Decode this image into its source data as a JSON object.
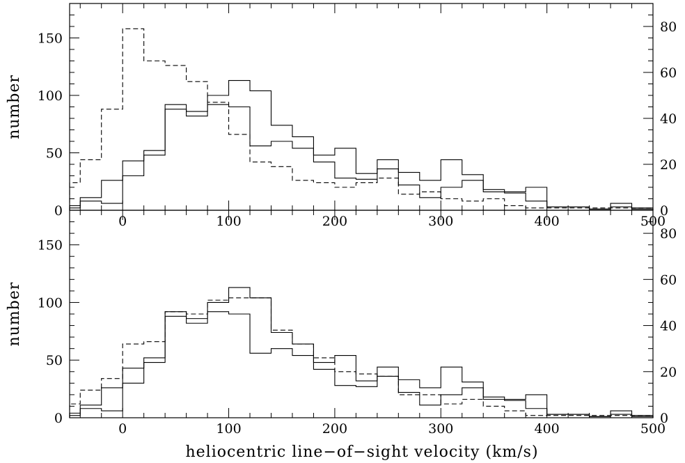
{
  "chart_data": [
    {
      "type": "histogram",
      "panel": "top",
      "xlabel": "",
      "ylabel": "number",
      "xlim": [
        -50,
        500
      ],
      "ylim": [
        0,
        180
      ],
      "y2lim": [
        0,
        90
      ],
      "xticks": [
        0,
        100,
        200,
        300,
        400,
        500
      ],
      "yticks": [
        0,
        50,
        100,
        150
      ],
      "y2ticks": [
        0,
        20,
        40,
        60,
        80
      ],
      "bin_edges": [
        -50,
        -40,
        -20,
        0,
        20,
        40,
        60,
        80,
        100,
        120,
        140,
        160,
        180,
        200,
        220,
        240,
        260,
        280,
        300,
        320,
        340,
        360,
        380,
        400,
        420,
        440,
        460,
        480,
        500
      ],
      "series": [
        {
          "style": "solid",
          "axis": "left",
          "values": [
            4,
            11,
            26,
            43,
            52,
            92,
            86,
            100,
            113,
            104,
            74,
            64,
            48,
            54,
            32,
            44,
            33,
            26,
            44,
            31,
            18,
            16,
            20,
            3,
            3,
            1,
            6,
            2
          ]
        },
        {
          "style": "solid",
          "axis": "left",
          "values": [
            2,
            8,
            6,
            30,
            48,
            88,
            82,
            92,
            90,
            56,
            60,
            54,
            42,
            28,
            27,
            36,
            22,
            11,
            20,
            26,
            16,
            15,
            8,
            3,
            3,
            1,
            3,
            1
          ]
        },
        {
          "style": "dashed",
          "axis": "right",
          "values": [
            12,
            22,
            44,
            79,
            65,
            63,
            56,
            47,
            33,
            21,
            19,
            13,
            12,
            10,
            12,
            14,
            7,
            8,
            5,
            4,
            5,
            2,
            1,
            1,
            1,
            1,
            1,
            1
          ]
        }
      ]
    },
    {
      "type": "histogram",
      "panel": "bottom",
      "xlabel": "heliocentric line−of−sight velocity (km/s)",
      "ylabel": "number",
      "xlim": [
        -50,
        500
      ],
      "ylim": [
        0,
        180
      ],
      "y2lim": [
        0,
        90
      ],
      "xticks": [
        0,
        100,
        200,
        300,
        400,
        500
      ],
      "yticks": [
        0,
        50,
        100,
        150
      ],
      "y2ticks": [
        0,
        20,
        40,
        60,
        80
      ],
      "bin_edges": [
        -50,
        -40,
        -20,
        0,
        20,
        40,
        60,
        80,
        100,
        120,
        140,
        160,
        180,
        200,
        220,
        240,
        260,
        280,
        300,
        320,
        340,
        360,
        380,
        400,
        420,
        440,
        460,
        480,
        500
      ],
      "series": [
        {
          "style": "solid",
          "axis": "left",
          "values": [
            4,
            11,
            26,
            43,
            52,
            92,
            86,
            100,
            113,
            104,
            74,
            64,
            48,
            54,
            32,
            44,
            33,
            26,
            44,
            31,
            18,
            16,
            20,
            3,
            3,
            1,
            6,
            2
          ]
        },
        {
          "style": "solid",
          "axis": "left",
          "values": [
            2,
            8,
            6,
            30,
            48,
            88,
            82,
            92,
            90,
            56,
            60,
            54,
            42,
            28,
            27,
            36,
            22,
            11,
            20,
            26,
            16,
            15,
            8,
            3,
            3,
            1,
            3,
            1
          ]
        },
        {
          "style": "dashed",
          "axis": "right",
          "values": [
            6,
            12,
            17,
            32,
            33,
            46,
            45,
            51,
            52,
            52,
            38,
            32,
            26,
            20,
            19,
            18,
            10,
            10,
            6,
            8,
            5,
            3,
            1,
            1,
            1,
            1,
            1,
            1
          ]
        }
      ]
    }
  ]
}
